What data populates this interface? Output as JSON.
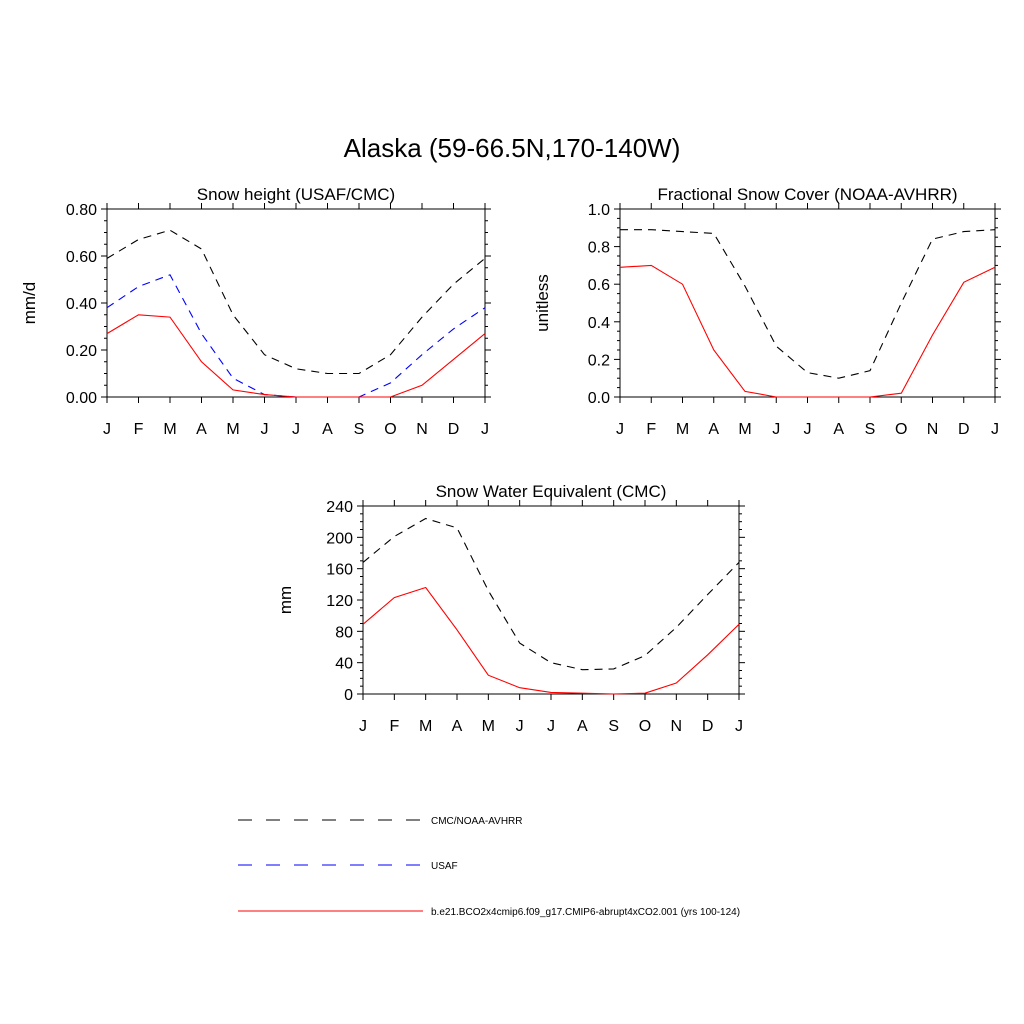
{
  "title": "Alaska (59-66.5N,170-140W)",
  "months": [
    "J",
    "F",
    "M",
    "A",
    "M",
    "J",
    "J",
    "A",
    "S",
    "O",
    "N",
    "D",
    "J"
  ],
  "series_styles": {
    "obs": {
      "color": "#000000",
      "dash": "dashed"
    },
    "usaf": {
      "color": "#0000ff",
      "dash": "dashed"
    },
    "model": {
      "color": "#ff0000",
      "dash": "solid"
    }
  },
  "legend": [
    {
      "key": "obs",
      "label": "CMC/NOAA-AVHRR"
    },
    {
      "key": "usaf",
      "label": "USAF"
    },
    {
      "key": "model",
      "label": "b.e21.BCO2x4cmip6.f09_g17.CMIP6-abrupt4xCO2.001 (yrs 100-124)"
    }
  ],
  "chart_data": [
    {
      "type": "line",
      "title": "Snow height (USAF/CMC)",
      "ylabel": "mm/d",
      "ylim": [
        0,
        0.8
      ],
      "yticks": [
        0,
        0.2,
        0.4,
        0.6,
        0.8
      ],
      "ytick_labels": [
        "0.00",
        "0.20",
        "0.40",
        "0.60",
        "0.80"
      ],
      "x": [
        "J",
        "F",
        "M",
        "A",
        "M",
        "J",
        "J",
        "A",
        "S",
        "O",
        "N",
        "D",
        "J"
      ],
      "series": [
        {
          "key": "obs",
          "values": [
            0.59,
            0.67,
            0.71,
            0.63,
            0.35,
            0.18,
            0.12,
            0.1,
            0.1,
            0.18,
            0.34,
            0.48,
            0.59
          ]
        },
        {
          "key": "usaf",
          "values": [
            0.38,
            0.47,
            0.52,
            0.27,
            0.08,
            0.01,
            0.0,
            0.0,
            0.0,
            0.06,
            0.18,
            0.29,
            0.38
          ]
        },
        {
          "key": "model",
          "values": [
            0.27,
            0.35,
            0.34,
            0.15,
            0.03,
            0.01,
            0.0,
            0.0,
            0.0,
            0.0,
            0.05,
            0.16,
            0.27
          ]
        }
      ]
    },
    {
      "type": "line",
      "title": "Fractional Snow Cover (NOAA-AVHRR)",
      "ylabel": "unitless",
      "ylim": [
        0,
        1.0
      ],
      "yticks": [
        0,
        0.2,
        0.4,
        0.6,
        0.8,
        1.0
      ],
      "ytick_labels": [
        "0.0",
        "0.2",
        "0.4",
        "0.6",
        "0.8",
        "1.0"
      ],
      "x": [
        "J",
        "F",
        "M",
        "A",
        "M",
        "J",
        "J",
        "A",
        "S",
        "O",
        "N",
        "D",
        "J"
      ],
      "series": [
        {
          "key": "obs",
          "values": [
            0.89,
            0.89,
            0.88,
            0.87,
            0.59,
            0.27,
            0.13,
            0.1,
            0.14,
            0.5,
            0.84,
            0.88,
            0.89
          ]
        },
        {
          "key": "model",
          "values": [
            0.69,
            0.7,
            0.6,
            0.25,
            0.03,
            0.0,
            0.0,
            0.0,
            0.0,
            0.02,
            0.33,
            0.61,
            0.69
          ]
        }
      ]
    },
    {
      "type": "line",
      "title": "Snow Water Equivalent (CMC)",
      "ylabel": "mm",
      "ylim": [
        0,
        240
      ],
      "yticks": [
        0,
        40,
        80,
        120,
        160,
        200,
        240
      ],
      "ytick_labels": [
        "0",
        "40",
        "80",
        "120",
        "160",
        "200",
        "240"
      ],
      "x": [
        "J",
        "F",
        "M",
        "A",
        "M",
        "J",
        "J",
        "A",
        "S",
        "O",
        "N",
        "D",
        "J"
      ],
      "series": [
        {
          "key": "obs",
          "values": [
            168,
            201,
            224,
            212,
            132,
            65,
            40,
            31,
            32,
            49,
            85,
            127,
            168
          ]
        },
        {
          "key": "model",
          "values": [
            89,
            123,
            136,
            82,
            24,
            8,
            2,
            1,
            0,
            1,
            14,
            50,
            89
          ]
        }
      ]
    }
  ]
}
